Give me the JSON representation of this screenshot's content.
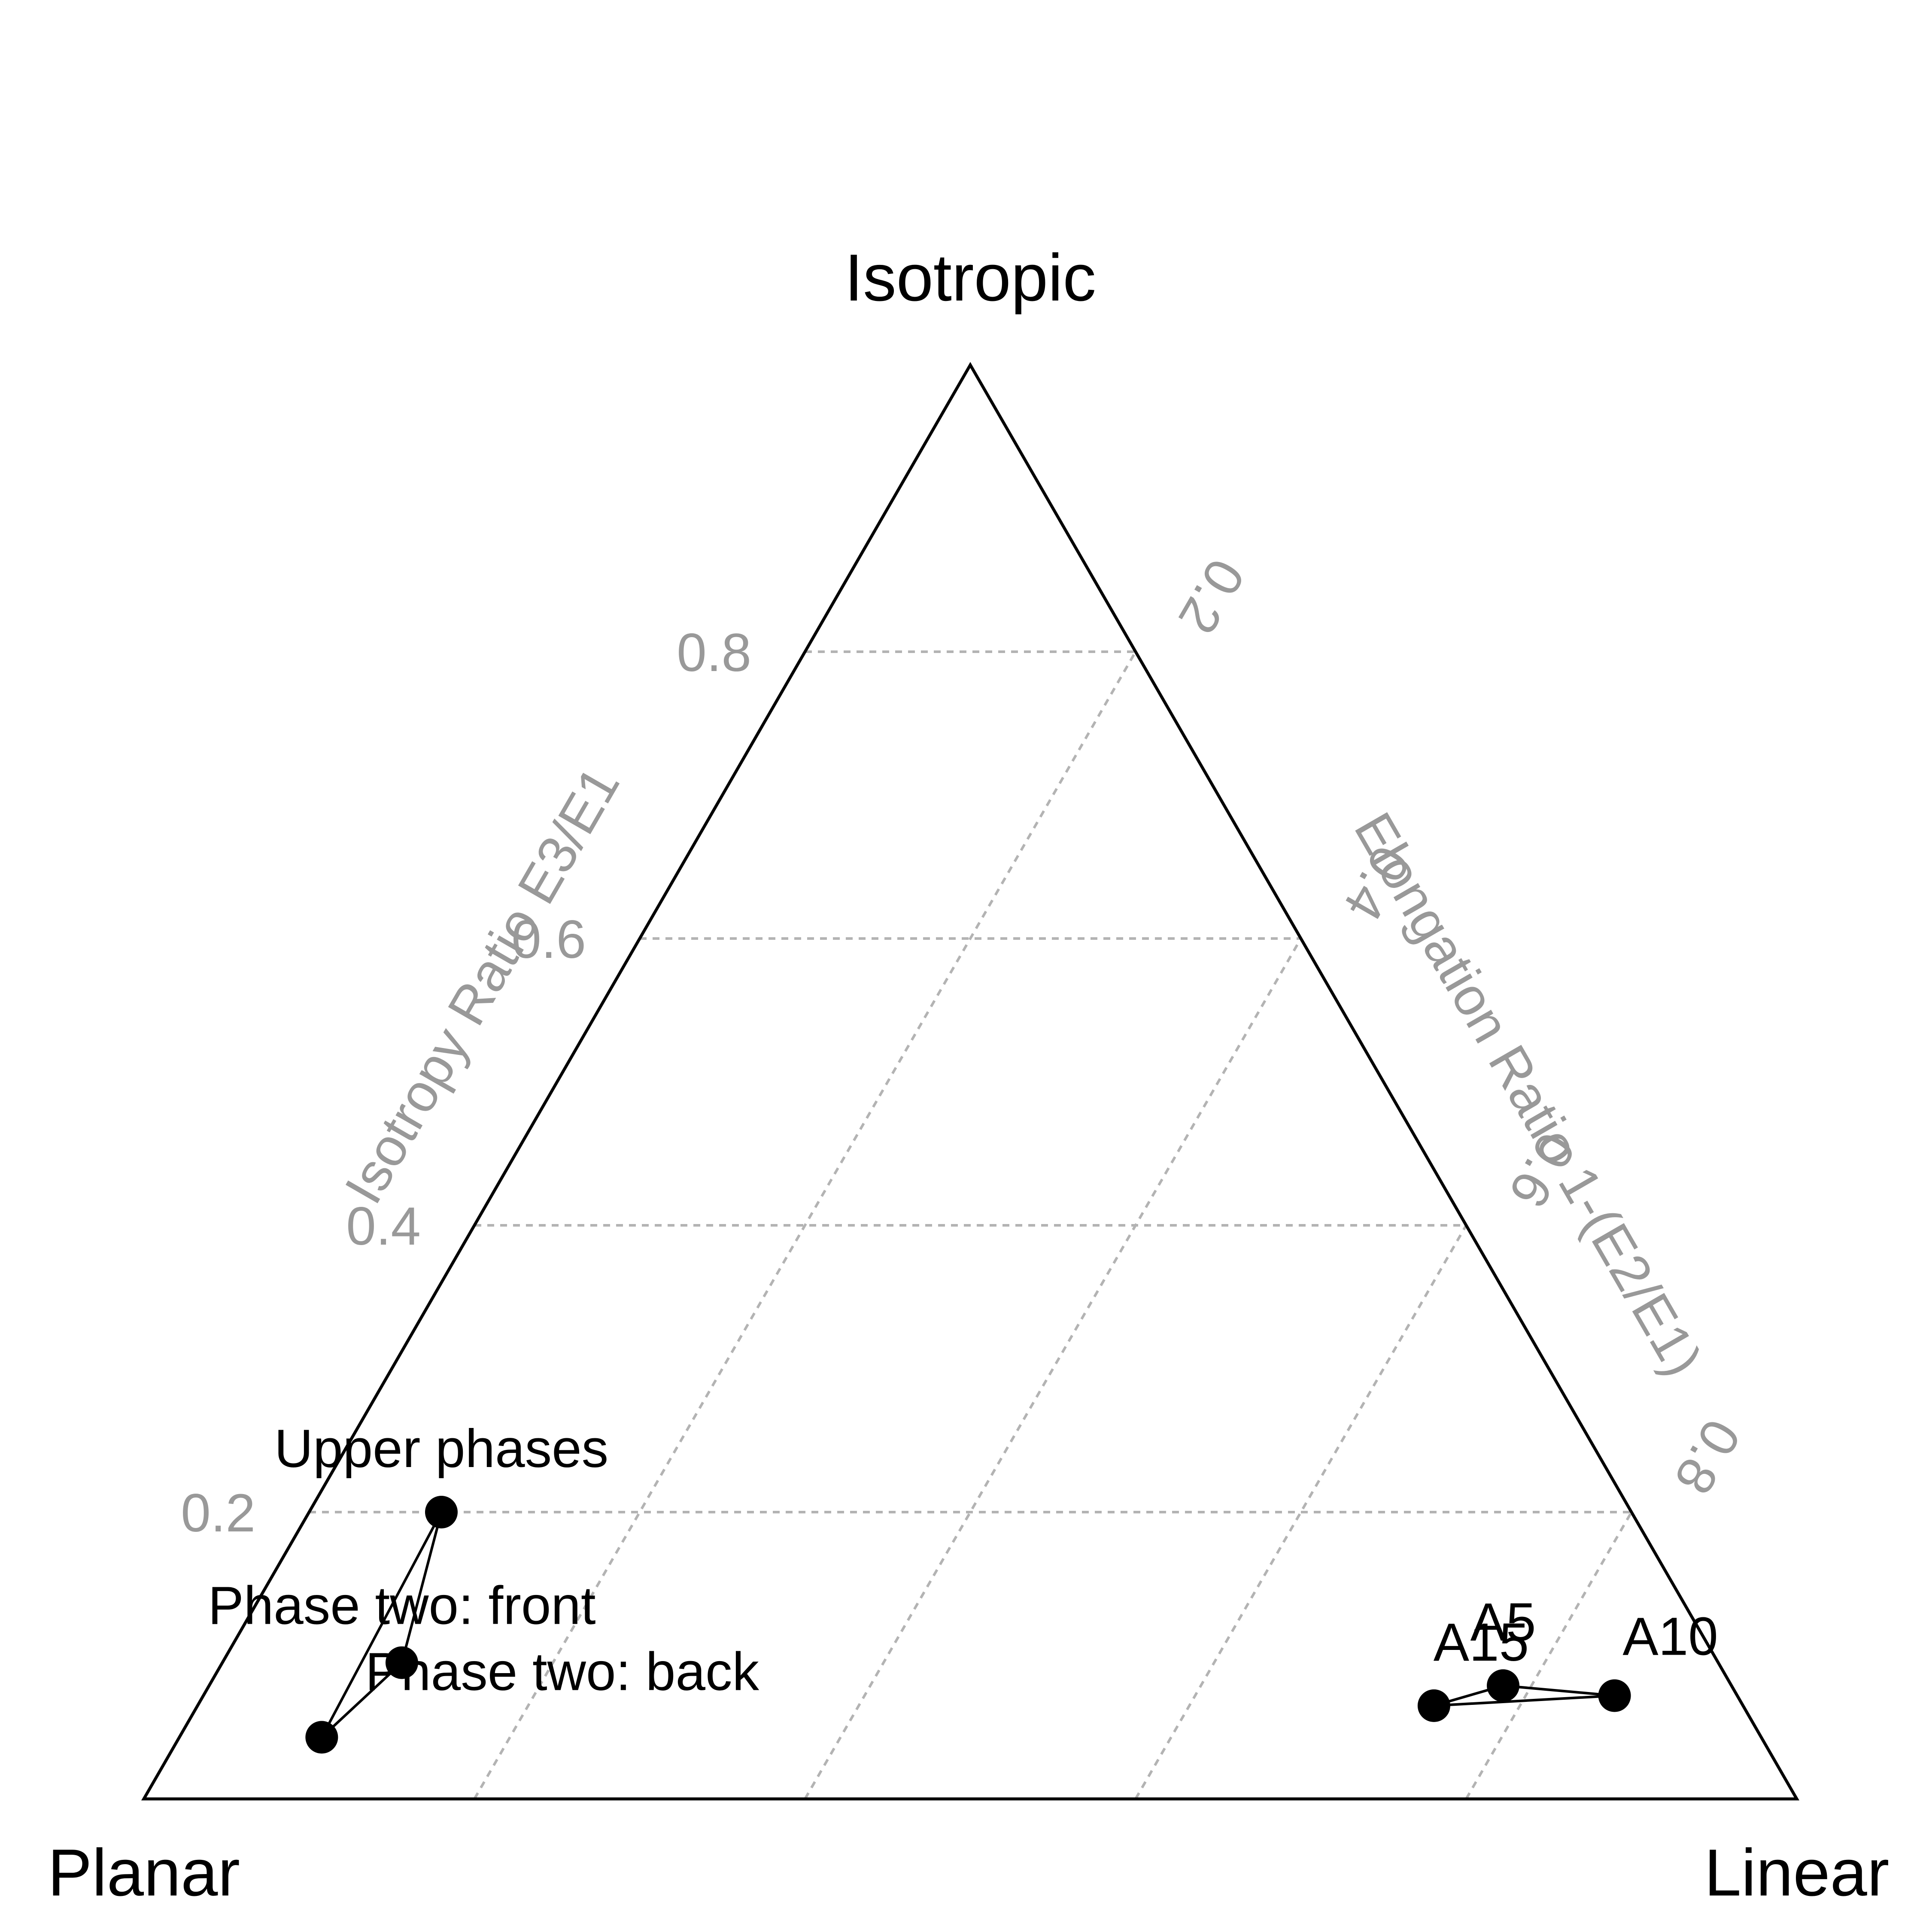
{
  "chart_data": {
    "type": "scatter",
    "plot": "ternary",
    "vertices": {
      "top": "Isotropic",
      "left": "Planar",
      "right": "Linear"
    },
    "axes": {
      "isotropy": {
        "title": "Isotropy Ratio E3/E1",
        "ticks": [
          0.2,
          0.4,
          0.6,
          0.8
        ],
        "tick_labels": [
          "0.2",
          "0.4",
          "0.6",
          "0.8"
        ]
      },
      "elongation": {
        "title": "Elongation Ratio 1-(E2/E1)",
        "ticks": [
          0.2,
          0.4,
          0.6,
          0.8
        ],
        "tick_labels": [
          "0.2",
          "0.4",
          "0.6",
          "0.8"
        ]
      }
    },
    "grid": true,
    "series": [
      {
        "points": [
          {
            "label": "Upper phases",
            "isotropy": 0.2,
            "elongation": 0.1
          },
          {
            "label": "Phase two: front",
            "isotropy": 0.095,
            "elongation": 0.12
          },
          {
            "label": "Phase two: back",
            "isotropy": 0.043,
            "elongation": 0.09
          }
        ]
      },
      {
        "points": [
          {
            "label": "A15",
            "isotropy": 0.065,
            "elongation": 0.8
          },
          {
            "label": "A5",
            "isotropy": 0.079,
            "elongation": 0.85
          },
          {
            "label": "A10",
            "isotropy": 0.072,
            "elongation": 0.92
          }
        ]
      }
    ]
  }
}
